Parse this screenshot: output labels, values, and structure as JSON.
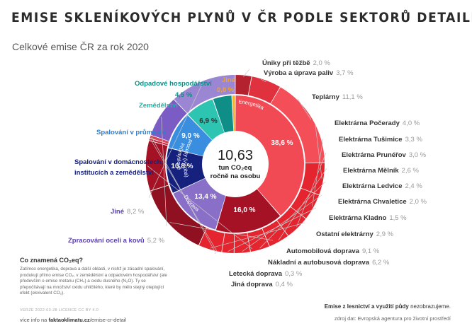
{
  "title": "EMISE SKLENÍKOVÝCH PLYNŮ V ČR PODLE SEKTORŮ DETAILNĚ",
  "subtitle": "Celkové emise ČR za rok 2020",
  "center": {
    "value": "10,63",
    "line1": "tun CO₂eq",
    "line2": "ročně na osobu"
  },
  "note": {
    "question": "Co znamená CO₂eq?",
    "text": "Zatímco energetika, doprava a další oblasti, v nichž je zásadní spalování, produkují přímo emise CO₂, v zemědělství a odpadovém hospodářství (ale především o emise metanu (CH₄) a oxidu dusného (N₂O). Ty se přepočítávají na množství oxidu uhličitého, které by mělo stejný oteplující efekt (ekvivalent CO₂)."
  },
  "footer": {
    "version": "VERZE 2022-03-28   LICENCE CC BY 4.0",
    "more_prefix": "více info na ",
    "more_link": "faktaoklimatu.cz",
    "more_suffix": "/emise-cr-detail",
    "excluded_bold": "Emise z lesnictví a využití půdy",
    "excluded_rest": " nezobrazujeme.",
    "source": "zdroj dat: Evropská agentura pro životní prostředí"
  },
  "chart_data": {
    "type": "pie",
    "title": "EMISE SKLENÍKOVÝCH PLYNŮ V ČR PODLE SEKTORŮ DETAILNĚ",
    "subtitle": "Celkové emise ČR za rok 2020",
    "unit": "%",
    "inner_ring": [
      {
        "name": "Energetika",
        "value": 38.6,
        "label": "38,6 %",
        "color": "#f24a55"
      },
      {
        "name": "Doprava",
        "value": 16.0,
        "label": "16,0 %",
        "color": "#a51226"
      },
      {
        "name": "Průmyslové procesy (výroba)",
        "value": 13.4,
        "label": "13,4 %",
        "color": "#8a6fc9"
      },
      {
        "name": "Spalování v domácnostech, institucích a zemědělství",
        "value": 10.8,
        "label": "10,8 %",
        "color": "#16217e"
      },
      {
        "name": "Spalování v průmyslu",
        "value": 9.0,
        "label": "9,0 %",
        "color": "#3a8ee0"
      },
      {
        "name": "Zemědělství",
        "value": 6.9,
        "label": "6,9 %",
        "color": "#2ec4b2"
      },
      {
        "name": "Odpadové hospodářství",
        "value": 4.5,
        "label": "4,5 %",
        "color": "#0e8e86"
      },
      {
        "name": "Jiné",
        "value": 0.8,
        "label": "0,8 %",
        "color": "#f5b02e"
      }
    ],
    "outer_ring": [
      {
        "name": "Úniky při těžbě",
        "value": 2.0,
        "label": "2,0 %",
        "color": "#b5222f"
      },
      {
        "name": "Výroba a úprava paliv",
        "value": 3.7,
        "label": "3,7 %",
        "color": "#e0323e"
      },
      {
        "name": "Teplárny",
        "value": 11.1,
        "label": "11,1 %",
        "color": "#f44e58"
      },
      {
        "name": "Elektrárna Počerady",
        "value": 4.0,
        "label": "4,0 %",
        "color": "#e4252f"
      },
      {
        "name": "Elektrárna Tušimice",
        "value": 3.3,
        "label": "3,3 %",
        "color": "#e4252f"
      },
      {
        "name": "Elektrárna Prunéřov",
        "value": 3.0,
        "label": "3,0 %",
        "color": "#e4252f"
      },
      {
        "name": "Elektrárna Mělník",
        "value": 2.6,
        "label": "2,6 %",
        "color": "#e4252f"
      },
      {
        "name": "Elektrárna Ledvice",
        "value": 2.4,
        "label": "2,4 %",
        "color": "#e4252f"
      },
      {
        "name": "Elektrárna Chvaletice",
        "value": 2.0,
        "label": "2,0 %",
        "color": "#e4252f"
      },
      {
        "name": "Elektrárna Kladno",
        "value": 1.5,
        "label": "1,5 %",
        "color": "#e4252f"
      },
      {
        "name": "Ostatní elektrárny",
        "value": 2.9,
        "label": "2,9 %",
        "color": "#e4252f"
      },
      {
        "name": "Automobilová doprava",
        "value": 9.1,
        "label": "9,1 %",
        "color": "#8f1020"
      },
      {
        "name": "Nákladní a autobusová doprava",
        "value": 6.2,
        "label": "6,2 %",
        "color": "#a51226"
      },
      {
        "name": "Letecká doprava",
        "value": 0.3,
        "label": "0,3 %",
        "color": "#c42a3c"
      },
      {
        "name": "Jiná doprava",
        "value": 0.4,
        "label": "0,4 %",
        "color": "#d8465a"
      },
      {
        "name": "Zpracování oceli a kovů",
        "value": 5.2,
        "label": "5,2 %",
        "color": "#7b5cc4"
      },
      {
        "name": "Jiné",
        "value": 8.2,
        "label": "8,2 %",
        "color": "#9a86d3"
      }
    ],
    "ring_labels": {
      "energetika": "Energetika",
      "doprava": "Doprava",
      "prumysl_1": "Průmyslové",
      "prumysl_2": "procesy (výroba)"
    }
  }
}
